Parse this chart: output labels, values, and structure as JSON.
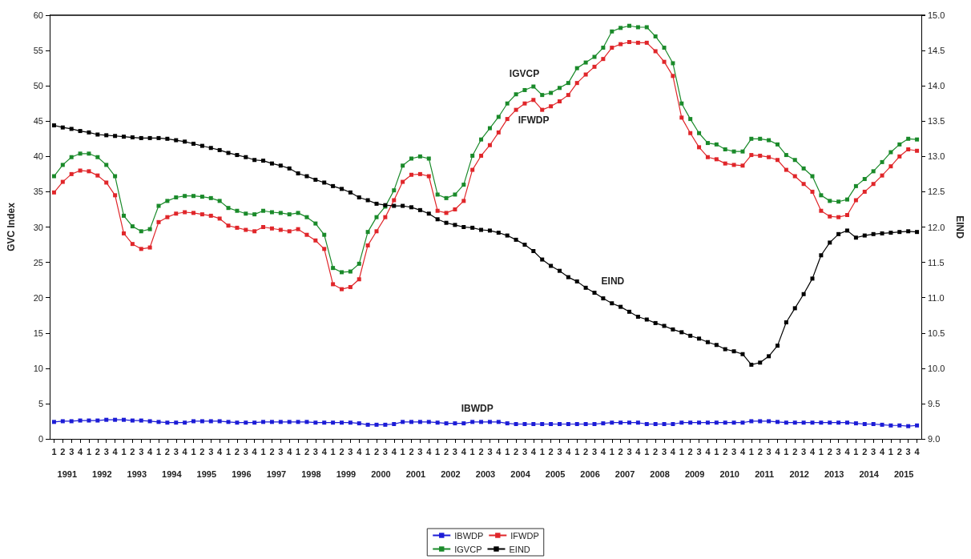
{
  "chart_data": {
    "type": "line",
    "ylabel": "GVC Index",
    "y2label": "EIND",
    "categories": [
      "1",
      "2",
      "3",
      "4",
      "1",
      "2",
      "3",
      "4",
      "1",
      "2",
      "3",
      "4",
      "1",
      "2",
      "3",
      "4",
      "1",
      "2",
      "3",
      "4",
      "1",
      "2",
      "3",
      "4",
      "1",
      "2",
      "3",
      "4",
      "1",
      "2",
      "3",
      "4",
      "1",
      "2",
      "3",
      "4",
      "1",
      "2",
      "3",
      "4",
      "1",
      "2",
      "3",
      "4",
      "1",
      "2",
      "3",
      "4",
      "1",
      "2",
      "3",
      "4",
      "1",
      "2",
      "3",
      "4",
      "1",
      "2",
      "3",
      "4",
      "1",
      "2",
      "3",
      "4",
      "1",
      "2",
      "3",
      "4",
      "1",
      "2",
      "3",
      "4",
      "1",
      "2",
      "3",
      "4",
      "1",
      "2",
      "3",
      "4",
      "1",
      "2",
      "3",
      "4",
      "1",
      "2",
      "3",
      "4",
      "1",
      "2",
      "3",
      "4",
      "1",
      "2",
      "3",
      "4",
      "1",
      "2",
      "3",
      "4"
    ],
    "series": [
      {
        "name": "IBWDP",
        "color": "#1c1cd6",
        "values": [
          2.4,
          2.5,
          2.5,
          2.6,
          2.6,
          2.6,
          2.7,
          2.7,
          2.7,
          2.6,
          2.6,
          2.5,
          2.4,
          2.3,
          2.3,
          2.3,
          2.5,
          2.5,
          2.5,
          2.5,
          2.4,
          2.3,
          2.3,
          2.3,
          2.4,
          2.4,
          2.4,
          2.4,
          2.4,
          2.4,
          2.3,
          2.3,
          2.3,
          2.3,
          2.3,
          2.2,
          2.0,
          2.0,
          2.0,
          2.1,
          2.4,
          2.4,
          2.4,
          2.4,
          2.3,
          2.2,
          2.2,
          2.2,
          2.4,
          2.4,
          2.4,
          2.4,
          2.2,
          2.1,
          2.1,
          2.1,
          2.1,
          2.1,
          2.1,
          2.1,
          2.1,
          2.1,
          2.1,
          2.2,
          2.3,
          2.3,
          2.3,
          2.3,
          2.1,
          2.1,
          2.1,
          2.1,
          2.3,
          2.3,
          2.3,
          2.3,
          2.3,
          2.3,
          2.3,
          2.3,
          2.5,
          2.5,
          2.5,
          2.4,
          2.3,
          2.3,
          2.3,
          2.3,
          2.3,
          2.3,
          2.3,
          2.3,
          2.2,
          2.1,
          2.1,
          2.0,
          1.9,
          1.9,
          1.8,
          1.9
        ]
      },
      {
        "name": "IFWDP",
        "color": "#e0262a",
        "values": [
          34.9,
          36.4,
          37.5,
          38.0,
          37.9,
          37.3,
          36.3,
          34.5,
          29.1,
          27.6,
          26.9,
          27.1,
          30.7,
          31.4,
          31.9,
          32.1,
          32.0,
          31.8,
          31.6,
          31.2,
          30.2,
          29.9,
          29.6,
          29.4,
          30.0,
          29.8,
          29.6,
          29.4,
          29.7,
          28.9,
          28.1,
          26.9,
          21.9,
          21.2,
          21.5,
          22.6,
          27.4,
          29.4,
          31.4,
          33.8,
          36.4,
          37.4,
          37.5,
          37.2,
          32.3,
          32.0,
          32.5,
          33.7,
          38.1,
          40.1,
          41.6,
          43.4,
          45.3,
          46.6,
          47.5,
          48.0,
          46.6,
          47.1,
          47.8,
          48.7,
          50.4,
          51.6,
          52.7,
          53.8,
          55.4,
          55.9,
          56.2,
          56.1,
          56.1,
          54.9,
          53.4,
          51.4,
          45.5,
          43.3,
          41.3,
          39.9,
          39.6,
          39.0,
          38.8,
          38.7,
          40.2,
          40.1,
          39.9,
          39.5,
          38.1,
          37.2,
          36.1,
          35.0,
          32.3,
          31.5,
          31.4,
          31.7,
          33.8,
          35.0,
          36.1,
          37.3,
          38.6,
          40.0,
          41.0,
          40.8
        ]
      },
      {
        "name": "IGVCP",
        "color": "#1a8a2a",
        "values": [
          37.2,
          38.8,
          39.9,
          40.4,
          40.4,
          39.9,
          38.8,
          37.2,
          31.6,
          30.1,
          29.4,
          29.7,
          33.0,
          33.7,
          34.2,
          34.4,
          34.4,
          34.3,
          34.1,
          33.7,
          32.7,
          32.3,
          31.9,
          31.8,
          32.3,
          32.1,
          32.0,
          31.8,
          32.0,
          31.4,
          30.5,
          28.9,
          24.2,
          23.6,
          23.7,
          24.8,
          29.3,
          31.4,
          32.9,
          35.2,
          38.7,
          39.7,
          40.0,
          39.7,
          34.6,
          34.1,
          34.6,
          36.0,
          40.1,
          42.4,
          44.0,
          45.6,
          47.5,
          48.8,
          49.4,
          49.9,
          48.7,
          49.0,
          49.7,
          50.4,
          52.5,
          53.3,
          54.1,
          55.4,
          57.7,
          58.2,
          58.5,
          58.3,
          58.3,
          57.0,
          55.4,
          53.2,
          47.5,
          45.3,
          43.3,
          41.9,
          41.7,
          41.0,
          40.7,
          40.7,
          42.5,
          42.5,
          42.3,
          41.7,
          40.2,
          39.5,
          38.3,
          37.2,
          34.5,
          33.7,
          33.6,
          33.9,
          35.8,
          36.8,
          37.9,
          39.2,
          40.6,
          41.7,
          42.5,
          42.4
        ]
      },
      {
        "name": "EIND",
        "color": "#000000",
        "axis": "y2",
        "values": [
          13.44,
          13.41,
          13.39,
          13.36,
          13.34,
          13.31,
          13.3,
          13.29,
          13.28,
          13.27,
          13.26,
          13.26,
          13.26,
          13.25,
          13.23,
          13.21,
          13.18,
          13.15,
          13.12,
          13.09,
          13.05,
          13.02,
          12.99,
          12.95,
          12.94,
          12.9,
          12.87,
          12.83,
          12.76,
          12.72,
          12.67,
          12.63,
          12.58,
          12.54,
          12.49,
          12.42,
          12.38,
          12.33,
          12.31,
          12.3,
          12.3,
          12.28,
          12.24,
          12.19,
          12.11,
          12.06,
          12.03,
          12.0,
          11.99,
          11.96,
          11.95,
          11.92,
          11.88,
          11.82,
          11.75,
          11.66,
          11.54,
          11.45,
          11.38,
          11.29,
          11.23,
          11.14,
          11.07,
          10.99,
          10.92,
          10.87,
          10.8,
          10.73,
          10.69,
          10.64,
          10.6,
          10.55,
          10.51,
          10.46,
          10.42,
          10.37,
          10.33,
          10.27,
          10.24,
          10.2,
          10.05,
          10.08,
          10.17,
          10.32,
          10.65,
          10.85,
          11.05,
          11.27,
          11.6,
          11.78,
          11.9,
          11.95,
          11.85,
          11.88,
          11.9,
          11.91,
          11.92,
          11.93,
          11.94,
          11.93
        ]
      }
    ],
    "ylim": [
      0,
      60
    ],
    "yticks": [
      0,
      5,
      10,
      15,
      20,
      25,
      30,
      35,
      40,
      45,
      50,
      55,
      60
    ],
    "y2lim": [
      9,
      15
    ],
    "y2ticks": [
      {
        "value": 9,
        "label": "9.0"
      },
      {
        "value": 9.5,
        "label": "9.5"
      },
      {
        "value": 10,
        "label": "10.0"
      },
      {
        "value": 10.5,
        "label": "10.5"
      },
      {
        "value": 11,
        "label": "11.0"
      },
      {
        "value": 11.5,
        "label": "11.5"
      },
      {
        "value": 12,
        "label": "12.0"
      },
      {
        "value": 12.5,
        "label": "12.5"
      },
      {
        "value": 13,
        "label": "13.0"
      },
      {
        "value": 13.5,
        "label": "13.5"
      },
      {
        "value": 14,
        "label": "14.0"
      },
      {
        "value": 14.5,
        "label": "14.5"
      },
      {
        "value": 15,
        "label": "15.0"
      }
    ],
    "annotations": [
      "1991",
      "1992",
      "1993",
      "1994",
      "1995",
      "1996",
      "1997",
      "1998",
      "1999",
      "2000",
      "2001",
      "2002",
      "2003",
      "2004",
      "2005",
      "2006",
      "2007",
      "2008",
      "2009",
      "2010",
      "2011",
      "2012",
      "2013",
      "2014",
      "2015",
      "IGVCP",
      "IFWDP",
      "EIND",
      "IBWDP"
    ],
    "grid": false,
    "legend": "bottom",
    "marker": "square",
    "line_style": "solid"
  }
}
